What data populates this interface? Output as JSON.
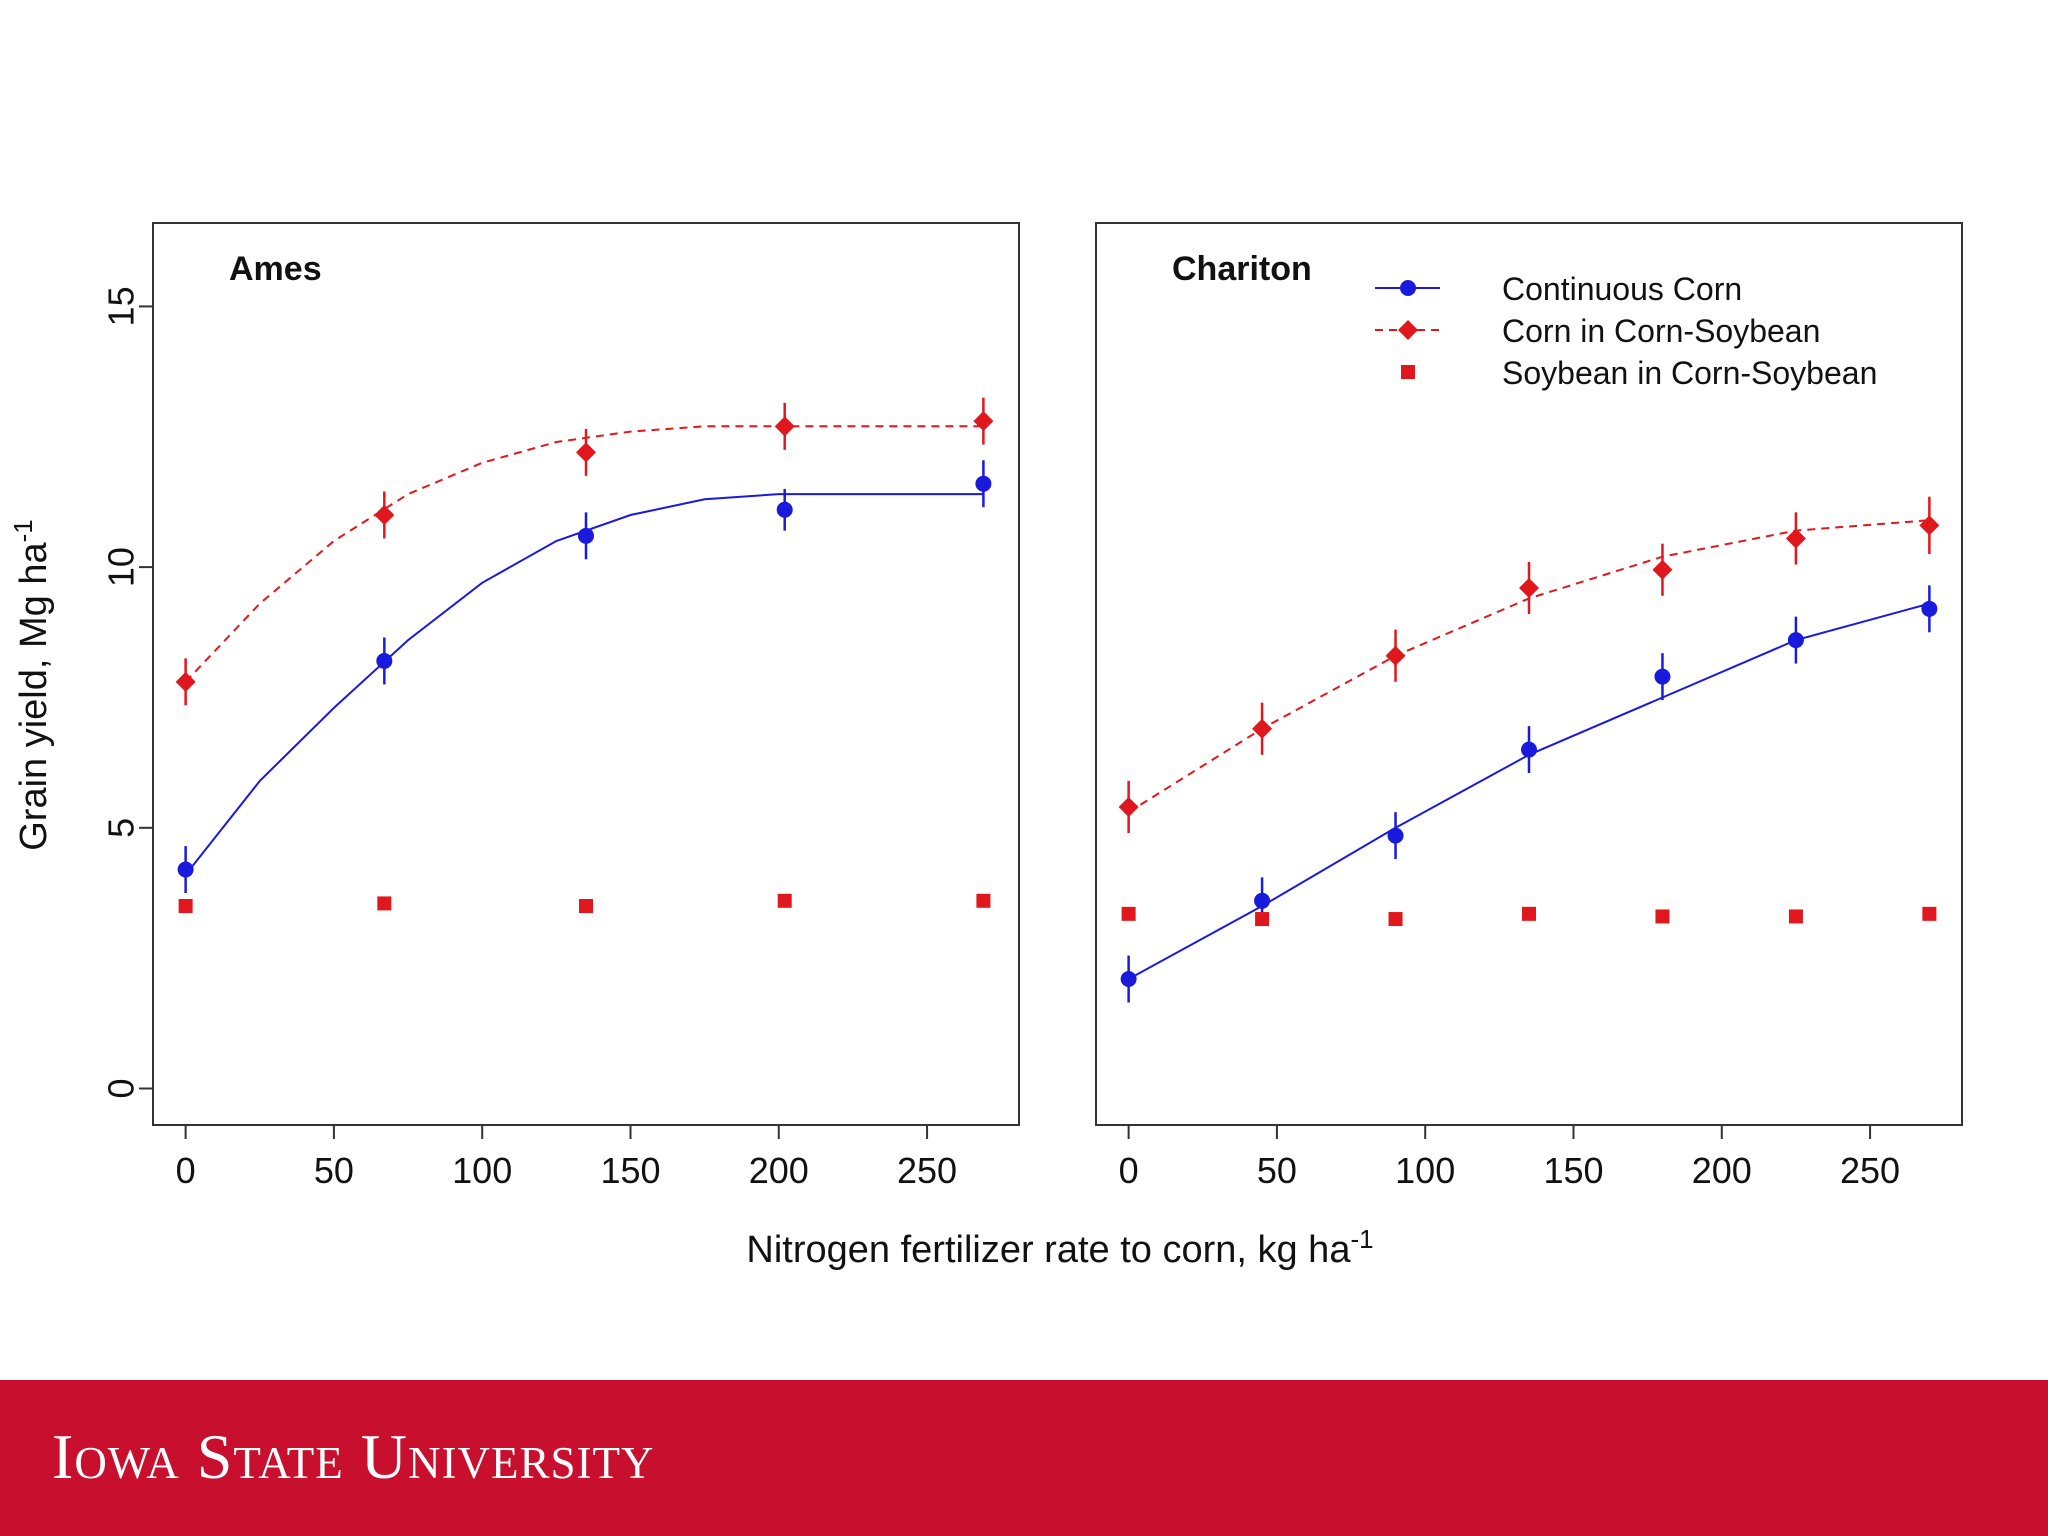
{
  "chart_data": {
    "type": "scatter",
    "ylabel": "Grain yield, Mg ha",
    "ylabel_sup": "-1",
    "xlabel": "Nitrogen fertilizer rate to corn, kg ha",
    "xlabel_sup": "-1",
    "ylim": [
      -0.7,
      16.6
    ],
    "y_ticks": [
      0,
      5,
      10,
      15
    ],
    "legend": {
      "placement": "top-right",
      "entries": [
        "Continuous Corn",
        "Corn in Corn-Soybean",
        "Soybean in Corn-Soybean"
      ]
    },
    "colors": {
      "continuous": "#1a1adc",
      "corn_soy": "#e0171c",
      "soybean": "#e0171c"
    },
    "panels": [
      {
        "title": "Ames",
        "xlim": [
          -11,
          281
        ],
        "x_ticks": [
          0,
          50,
          100,
          150,
          200,
          250
        ],
        "series": [
          {
            "name": "Continuous Corn",
            "marker": "circle",
            "x": [
              0,
              67,
              135,
              202,
              269
            ],
            "values": [
              4.2,
              8.2,
              10.6,
              11.1,
              11.6
            ],
            "err": [
              0.45,
              0.45,
              0.45,
              0.4,
              0.45
            ],
            "fit": [
              [
                0,
                4.1
              ],
              [
                25,
                5.9
              ],
              [
                50,
                7.3
              ],
              [
                75,
                8.6
              ],
              [
                100,
                9.7
              ],
              [
                125,
                10.5
              ],
              [
                150,
                11.0
              ],
              [
                175,
                11.3
              ],
              [
                200,
                11.4
              ],
              [
                269,
                11.4
              ]
            ]
          },
          {
            "name": "Corn in Corn-Soybean",
            "marker": "diamond",
            "x": [
              0,
              67,
              135,
              202,
              269
            ],
            "values": [
              7.8,
              11.0,
              12.2,
              12.7,
              12.8
            ],
            "err": [
              0.45,
              0.45,
              0.45,
              0.45,
              0.45
            ],
            "fit": [
              [
                0,
                7.8
              ],
              [
                25,
                9.3
              ],
              [
                50,
                10.5
              ],
              [
                75,
                11.4
              ],
              [
                100,
                12.0
              ],
              [
                125,
                12.4
              ],
              [
                150,
                12.6
              ],
              [
                175,
                12.7
              ],
              [
                269,
                12.7
              ]
            ]
          },
          {
            "name": "Soybean in Corn-Soybean",
            "marker": "square",
            "x": [
              0,
              67,
              135,
              202,
              269
            ],
            "values": [
              3.5,
              3.55,
              3.5,
              3.6,
              3.6
            ]
          }
        ]
      },
      {
        "title": "Chariton",
        "xlim": [
          -11,
          281
        ],
        "x_ticks": [
          0,
          50,
          100,
          150,
          200,
          250
        ],
        "series": [
          {
            "name": "Continuous Corn",
            "marker": "circle",
            "x": [
              0,
              45,
              90,
              135,
              180,
              225,
              270
            ],
            "values": [
              2.1,
              3.6,
              4.85,
              6.5,
              7.9,
              8.6,
              9.2
            ],
            "err": [
              0.45,
              0.45,
              0.45,
              0.45,
              0.45,
              0.45,
              0.45
            ],
            "fit": [
              [
                0,
                2.1
              ],
              [
                45,
                3.5
              ],
              [
                90,
                5.0
              ],
              [
                135,
                6.4
              ],
              [
                180,
                7.5
              ],
              [
                225,
                8.6
              ],
              [
                270,
                9.3
              ]
            ]
          },
          {
            "name": "Corn in Corn-Soybean",
            "marker": "diamond",
            "x": [
              0,
              45,
              90,
              135,
              180,
              225,
              270
            ],
            "values": [
              5.4,
              6.9,
              8.3,
              9.6,
              9.95,
              10.55,
              10.8
            ],
            "err": [
              0.5,
              0.5,
              0.5,
              0.5,
              0.5,
              0.5,
              0.55
            ],
            "fit": [
              [
                0,
                5.3
              ],
              [
                45,
                6.9
              ],
              [
                90,
                8.3
              ],
              [
                135,
                9.4
              ],
              [
                180,
                10.2
              ],
              [
                225,
                10.7
              ],
              [
                270,
                10.9
              ]
            ]
          },
          {
            "name": "Soybean in Corn-Soybean",
            "marker": "square",
            "x": [
              0,
              45,
              90,
              135,
              180,
              225,
              270
            ],
            "values": [
              3.35,
              3.25,
              3.25,
              3.35,
              3.3,
              3.3,
              3.35
            ]
          }
        ]
      }
    ]
  },
  "footer": {
    "brand": "Iowa State University"
  }
}
